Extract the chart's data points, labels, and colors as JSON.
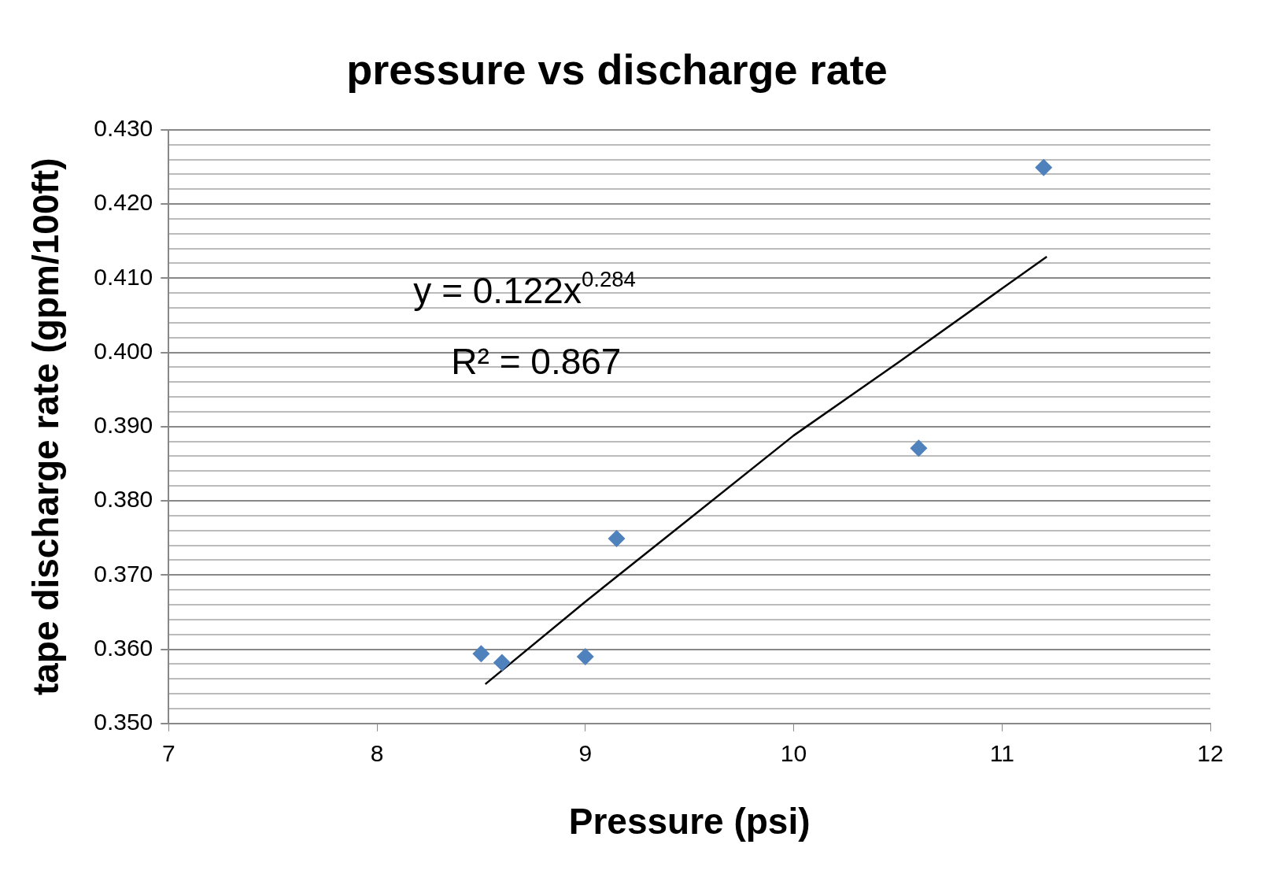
{
  "chart_data": {
    "type": "scatter",
    "title": "pressure vs discharge rate",
    "xlabel": "Pressure (psi)",
    "ylabel": "tape discharge rate (gpm/100ft)",
    "annotations": [
      "y = 0.122x$^{0.284}$",
      "R² = 0.867"
    ],
    "series": [
      {
        "color": "#4f81bd",
        "marker": "diamond",
        "x": [
          8.5,
          8.6,
          9.0,
          9.15,
          10.6,
          11.2
        ],
        "values": [
          0.3594,
          0.3582,
          0.359,
          0.3749,
          0.3871,
          0.4249
        ]
      },
      {
        "type": "line",
        "color": "#000000",
        "marker": "none",
        "line_style": "solid",
        "x": [
          8.52,
          9.0,
          9.5,
          10.0,
          10.5,
          11.215
        ],
        "values": [
          0.3553,
          0.3664,
          0.3776,
          0.3888,
          0.3986,
          0.4129
        ]
      }
    ],
    "xlim": [
      7,
      12
    ],
    "xticks": [
      7,
      8,
      9,
      10,
      11,
      12
    ],
    "ylim": [
      0.35,
      0.43
    ],
    "yticks": [
      {
        "value": 0.35,
        "label": "0.350"
      },
      {
        "value": 0.352,
        "label": null
      },
      {
        "value": 0.354,
        "label": null
      },
      {
        "value": 0.356,
        "label": null
      },
      {
        "value": 0.358,
        "label": null
      },
      {
        "value": 0.36,
        "label": "0.360"
      },
      {
        "value": 0.362,
        "label": null
      },
      {
        "value": 0.364,
        "label": null
      },
      {
        "value": 0.366,
        "label": null
      },
      {
        "value": 0.368,
        "label": null
      },
      {
        "value": 0.37,
        "label": "0.370"
      },
      {
        "value": 0.372,
        "label": null
      },
      {
        "value": 0.374,
        "label": null
      },
      {
        "value": 0.376,
        "label": null
      },
      {
        "value": 0.378,
        "label": null
      },
      {
        "value": 0.38,
        "label": "0.380"
      },
      {
        "value": 0.382,
        "label": null
      },
      {
        "value": 0.384,
        "label": null
      },
      {
        "value": 0.386,
        "label": null
      },
      {
        "value": 0.388,
        "label": null
      },
      {
        "value": 0.39,
        "label": "0.390"
      },
      {
        "value": 0.392,
        "label": null
      },
      {
        "value": 0.394,
        "label": null
      },
      {
        "value": 0.396,
        "label": null
      },
      {
        "value": 0.398,
        "label": null
      },
      {
        "value": 0.4,
        "label": "0.400"
      },
      {
        "value": 0.402,
        "label": null
      },
      {
        "value": 0.404,
        "label": null
      },
      {
        "value": 0.406,
        "label": null
      },
      {
        "value": 0.408,
        "label": null
      },
      {
        "value": 0.41,
        "label": "0.410"
      },
      {
        "value": 0.412,
        "label": null
      },
      {
        "value": 0.414,
        "label": null
      },
      {
        "value": 0.416,
        "label": null
      },
      {
        "value": 0.418,
        "label": null
      },
      {
        "value": 0.42,
        "label": "0.420"
      },
      {
        "value": 0.422,
        "label": null
      },
      {
        "value": 0.424,
        "label": null
      },
      {
        "value": 0.426,
        "label": null
      },
      {
        "value": 0.428,
        "label": null
      },
      {
        "value": 0.43,
        "label": "0.430"
      }
    ],
    "grid": "y",
    "legend": false
  }
}
